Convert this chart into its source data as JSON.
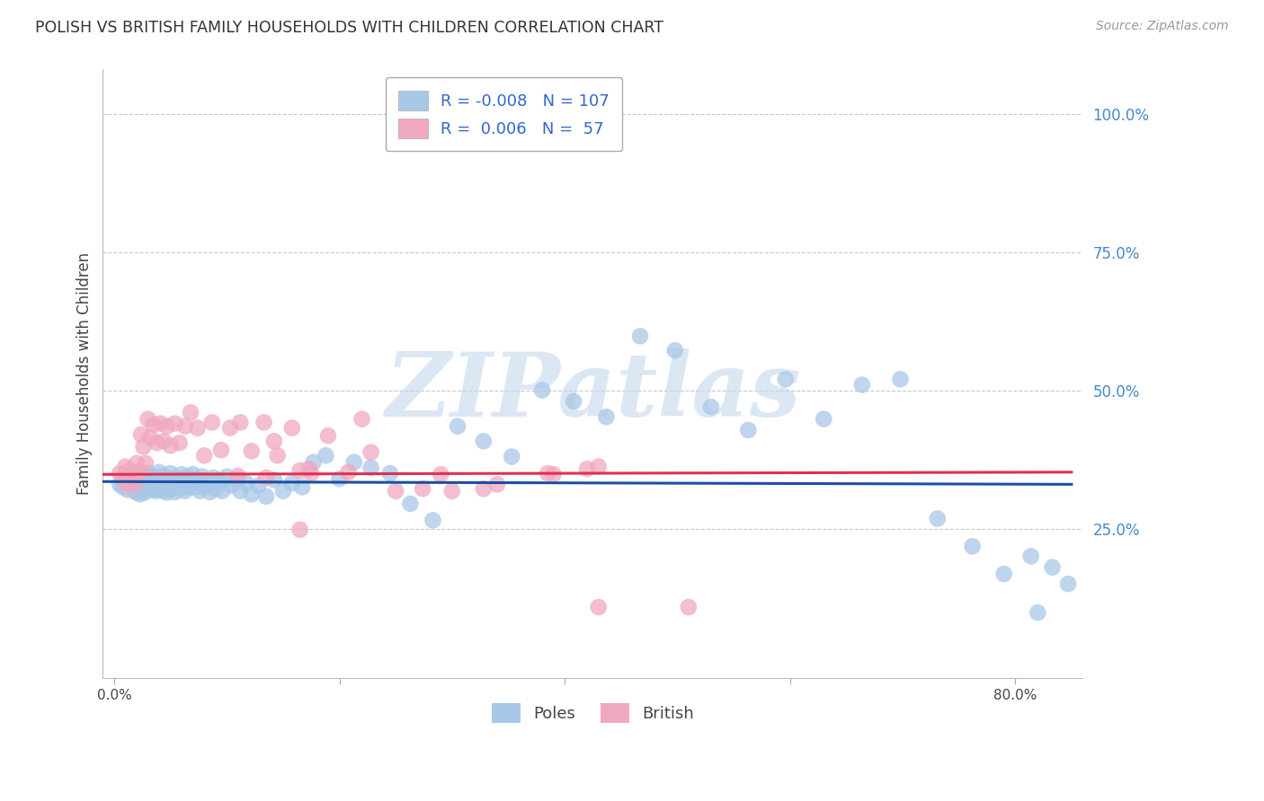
{
  "title": "POLISH VS BRITISH FAMILY HOUSEHOLDS WITH CHILDREN CORRELATION CHART",
  "source": "Source: ZipAtlas.com",
  "ylabel": "Family Households with Children",
  "ytick_labels": [
    "100.0%",
    "75.0%",
    "50.0%",
    "25.0%"
  ],
  "ytick_values": [
    1.0,
    0.75,
    0.5,
    0.25
  ],
  "xtick_values": [
    0.0,
    0.2,
    0.4,
    0.6,
    0.8
  ],
  "xtick_labels": [
    "0.0%",
    "",
    "",
    "",
    "80.0%"
  ],
  "xlim": [
    -0.01,
    0.86
  ],
  "ylim": [
    -0.02,
    1.08
  ],
  "poles_color": "#a8c8e8",
  "british_color": "#f0a8c0",
  "poles_line_color": "#1a4fa0",
  "british_line_color": "#e03050",
  "legend_R_poles": "-0.008",
  "legend_N_poles": "107",
  "legend_R_british": "0.006",
  "legend_N_british": "57",
  "watermark": "ZIPatlas",
  "poles_trend_y": [
    0.335,
    0.33
  ],
  "british_trend_y": [
    0.348,
    0.352
  ],
  "poles_x": [
    0.005,
    0.008,
    0.01,
    0.012,
    0.013,
    0.015,
    0.015,
    0.018,
    0.019,
    0.02,
    0.02,
    0.021,
    0.022,
    0.023,
    0.025,
    0.025,
    0.026,
    0.027,
    0.028,
    0.029,
    0.03,
    0.03,
    0.032,
    0.033,
    0.034,
    0.035,
    0.036,
    0.037,
    0.038,
    0.039,
    0.04,
    0.041,
    0.042,
    0.043,
    0.044,
    0.045,
    0.046,
    0.047,
    0.048,
    0.049,
    0.05,
    0.052,
    0.053,
    0.054,
    0.055,
    0.057,
    0.058,
    0.06,
    0.061,
    0.062,
    0.063,
    0.065,
    0.066,
    0.068,
    0.07,
    0.072,
    0.074,
    0.076,
    0.078,
    0.08,
    0.082,
    0.085,
    0.088,
    0.09,
    0.093,
    0.096,
    0.1,
    0.104,
    0.108,
    0.112,
    0.117,
    0.122,
    0.128,
    0.135,
    0.142,
    0.15,
    0.158,
    0.167,
    0.177,
    0.188,
    0.2,
    0.213,
    0.228,
    0.245,
    0.263,
    0.283,
    0.305,
    0.328,
    0.353,
    0.38,
    0.408,
    0.437,
    0.467,
    0.498,
    0.53,
    0.563,
    0.596,
    0.63,
    0.664,
    0.698,
    0.731,
    0.762,
    0.79,
    0.814,
    0.833,
    0.847,
    0.82
  ],
  "poles_y": [
    0.33,
    0.325,
    0.34,
    0.32,
    0.335,
    0.345,
    0.328,
    0.318,
    0.338,
    0.315,
    0.342,
    0.322,
    0.332,
    0.312,
    0.348,
    0.325,
    0.335,
    0.315,
    0.34,
    0.32,
    0.35,
    0.33,
    0.34,
    0.32,
    0.345,
    0.325,
    0.338,
    0.318,
    0.342,
    0.322,
    0.352,
    0.328,
    0.338,
    0.318,
    0.345,
    0.325,
    0.335,
    0.315,
    0.34,
    0.32,
    0.35,
    0.326,
    0.336,
    0.316,
    0.342,
    0.322,
    0.332,
    0.348,
    0.324,
    0.338,
    0.318,
    0.344,
    0.324,
    0.338,
    0.348,
    0.325,
    0.338,
    0.318,
    0.344,
    0.324,
    0.336,
    0.316,
    0.342,
    0.322,
    0.338,
    0.318,
    0.344,
    0.328,
    0.338,
    0.318,
    0.332,
    0.312,
    0.328,
    0.308,
    0.338,
    0.318,
    0.332,
    0.325,
    0.37,
    0.382,
    0.34,
    0.37,
    0.36,
    0.35,
    0.295,
    0.265,
    0.435,
    0.408,
    0.38,
    0.5,
    0.48,
    0.452,
    0.598,
    0.572,
    0.47,
    0.428,
    0.52,
    0.448,
    0.51,
    0.52,
    0.268,
    0.218,
    0.168,
    0.2,
    0.18,
    0.15,
    0.098
  ],
  "british_x": [
    0.005,
    0.008,
    0.01,
    0.012,
    0.014,
    0.016,
    0.018,
    0.02,
    0.022,
    0.024,
    0.026,
    0.028,
    0.03,
    0.032,
    0.035,
    0.038,
    0.041,
    0.044,
    0.047,
    0.05,
    0.054,
    0.058,
    0.063,
    0.068,
    0.074,
    0.08,
    0.087,
    0.095,
    0.103,
    0.112,
    0.122,
    0.133,
    0.145,
    0.158,
    0.173,
    0.19,
    0.208,
    0.228,
    0.25,
    0.274,
    0.3,
    0.328,
    0.22,
    0.175,
    0.142,
    0.11,
    0.39,
    0.135,
    0.165,
    0.385,
    0.43,
    0.29,
    0.42,
    0.34,
    0.51,
    0.165,
    0.43
  ],
  "british_y": [
    0.35,
    0.34,
    0.362,
    0.328,
    0.355,
    0.342,
    0.33,
    0.368,
    0.352,
    0.42,
    0.398,
    0.368,
    0.448,
    0.415,
    0.438,
    0.405,
    0.44,
    0.408,
    0.435,
    0.4,
    0.44,
    0.405,
    0.435,
    0.46,
    0.432,
    0.382,
    0.442,
    0.392,
    0.432,
    0.442,
    0.39,
    0.442,
    0.382,
    0.432,
    0.358,
    0.418,
    0.352,
    0.388,
    0.318,
    0.322,
    0.318,
    0.322,
    0.448,
    0.35,
    0.408,
    0.345,
    0.348,
    0.342,
    0.355,
    0.35,
    0.362,
    0.348,
    0.358,
    0.33,
    0.108,
    0.248,
    0.108
  ]
}
